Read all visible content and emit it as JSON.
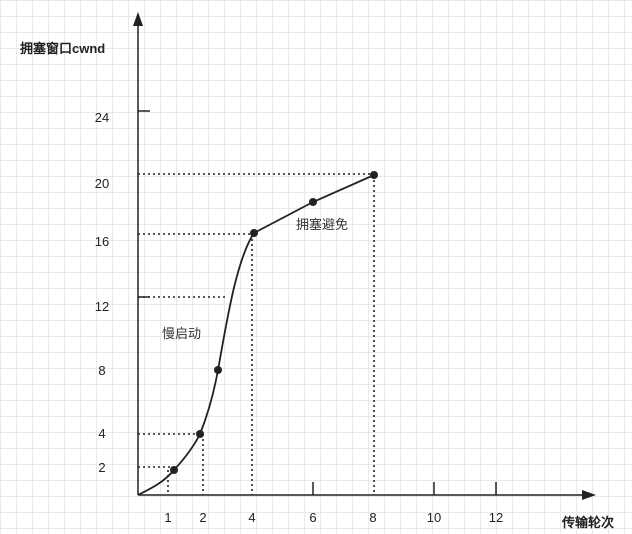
{
  "chart_data": {
    "type": "line",
    "ylabel": "拥塞窗口cwnd",
    "xlabel": "传输轮次",
    "y_ticks": [
      "2",
      "4",
      "8",
      "12",
      "16",
      "20",
      "24"
    ],
    "x_ticks": [
      "1",
      "2",
      "4",
      "6",
      "8",
      "10",
      "12"
    ],
    "series": [
      {
        "points": [
          {
            "x": 1,
            "y": 2
          },
          {
            "x": 2,
            "y": 4
          },
          {
            "x": 2.5,
            "y": 8
          },
          {
            "x": 4,
            "y": 16
          },
          {
            "x": 6,
            "y": 18
          },
          {
            "x": 8,
            "y": 20
          }
        ]
      }
    ],
    "annotations": [
      {
        "text": "慢启动",
        "x": 2.7,
        "y": 11
      },
      {
        "text": "拥塞避免",
        "x": 6.2,
        "y": 16.5
      }
    ],
    "grid": true
  }
}
